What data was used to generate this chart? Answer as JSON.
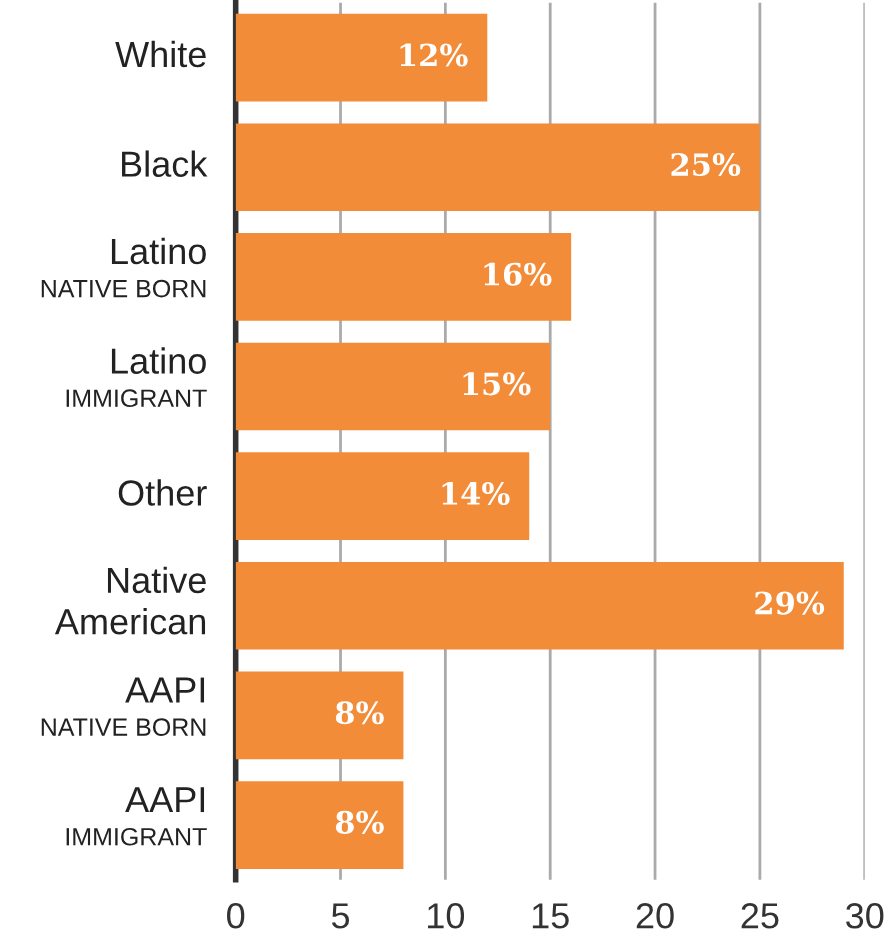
{
  "chart_data": {
    "type": "bar",
    "orientation": "horizontal",
    "categories": [
      "White",
      "Black",
      "Latino\nNATIVE BORN",
      "Latino\nIMMIGRANT",
      "Other",
      "Native\nAmerican",
      "AAPI\nNATIVE BORN",
      "AAPI\nIMMIGRANT"
    ],
    "values": [
      12,
      25,
      16,
      15,
      14,
      29,
      8,
      8
    ],
    "value_labels": [
      "12%",
      "25%",
      "16%",
      "15%",
      "14%",
      "29%",
      "8%",
      "8%"
    ],
    "color": "#f28c38",
    "xlim": [
      0,
      30
    ],
    "xticks": [
      0,
      5,
      10,
      15,
      20,
      25,
      30
    ],
    "grid": "x"
  }
}
